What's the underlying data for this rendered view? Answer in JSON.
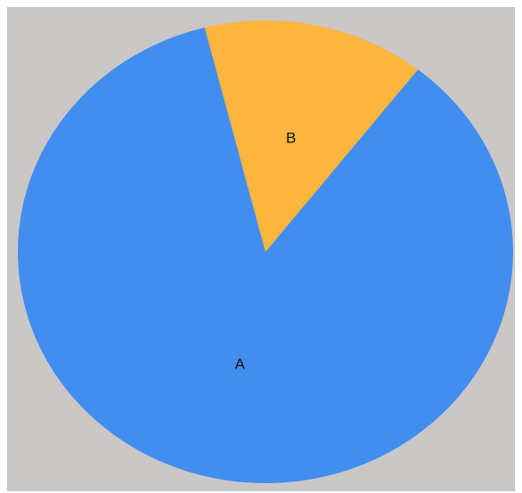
{
  "chart_data": {
    "type": "pie",
    "title": "",
    "slices": [
      {
        "label": "A",
        "value": 85.5,
        "color": "#418df0"
      },
      {
        "label": "B",
        "value": 14.5,
        "color": "#fcb53d"
      }
    ],
    "start_angle_deg": -52,
    "direction": "clockwise",
    "background_color": "#cac7c7",
    "legend": "none"
  }
}
